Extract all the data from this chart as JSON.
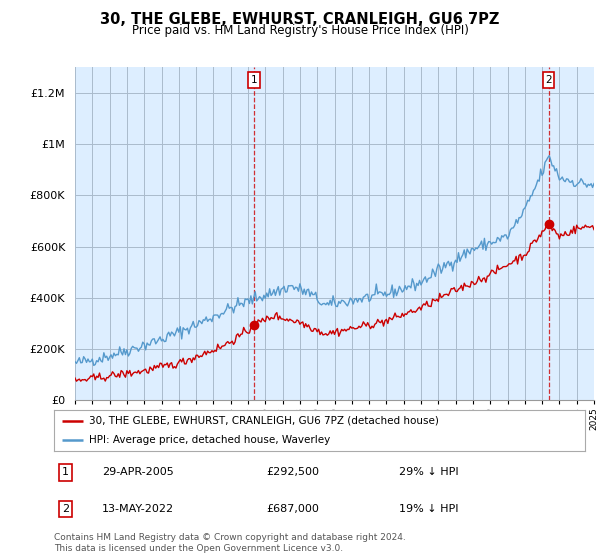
{
  "title": "30, THE GLEBE, EWHURST, CRANLEIGH, GU6 7PZ",
  "subtitle": "Price paid vs. HM Land Registry's House Price Index (HPI)",
  "title_fontsize": 10.5,
  "subtitle_fontsize": 8.5,
  "background_color": "#ffffff",
  "plot_bg_color": "#ddeeff",
  "grid_color": "#aabbcc",
  "ylim": [
    0,
    1300000
  ],
  "yticks": [
    0,
    200000,
    400000,
    600000,
    800000,
    1000000,
    1200000
  ],
  "ytick_labels": [
    "£0",
    "£200K",
    "£400K",
    "£600K",
    "£800K",
    "£1M",
    "£1.2M"
  ],
  "hpi_color": "#5599cc",
  "price_color": "#cc0000",
  "sale1_x": 2005.33,
  "sale1_y": 292500,
  "sale2_x": 2022.37,
  "sale2_y": 687000,
  "sale1_date": "29-APR-2005",
  "sale1_price": "£292,500",
  "sale1_hpi": "29% ↓ HPI",
  "sale2_date": "13-MAY-2022",
  "sale2_price": "£687,000",
  "sale2_hpi": "19% ↓ HPI",
  "legend_label1": "30, THE GLEBE, EWHURST, CRANLEIGH, GU6 7PZ (detached house)",
  "legend_label2": "HPI: Average price, detached house, Waverley",
  "footer": "Contains HM Land Registry data © Crown copyright and database right 2024.\nThis data is licensed under the Open Government Licence v3.0.",
  "xmin": 1995,
  "xmax": 2025
}
